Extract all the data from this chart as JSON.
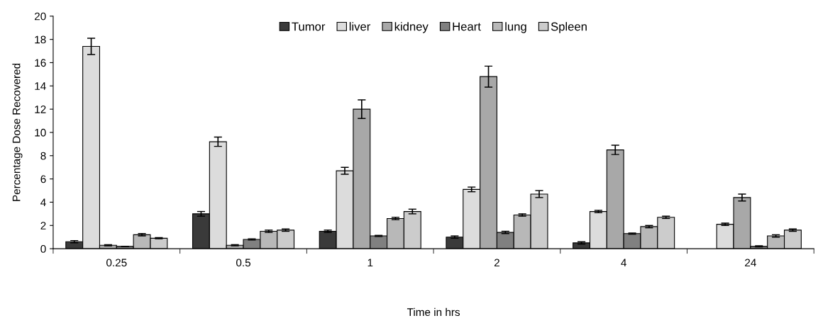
{
  "chart_data": {
    "type": "bar",
    "xlabel": "Time in hrs",
    "ylabel": "Percentage Dose Recovered",
    "categories": [
      "0.25",
      "0.5",
      "1",
      "2",
      "4",
      "24"
    ],
    "series": [
      {
        "name": "Tumor",
        "color": "#3a3a3a",
        "values": [
          0.6,
          3.0,
          1.5,
          1.0,
          0.5,
          null
        ],
        "errors": [
          0.1,
          0.2,
          0.1,
          0.1,
          0.1,
          null
        ]
      },
      {
        "name": "liver",
        "color": "#dcdcdc",
        "values": [
          17.4,
          9.2,
          6.7,
          5.1,
          3.2,
          2.1
        ],
        "errors": [
          0.7,
          0.4,
          0.3,
          0.2,
          0.1,
          0.1
        ]
      },
      {
        "name": "kidney",
        "color": "#a8a8a8",
        "values": [
          0.3,
          0.3,
          12.0,
          14.8,
          8.5,
          4.4
        ],
        "errors": [
          0.05,
          0.05,
          0.8,
          0.9,
          0.4,
          0.3
        ]
      },
      {
        "name": "Heart",
        "color": "#808080",
        "values": [
          0.2,
          0.8,
          1.1,
          1.4,
          1.3,
          0.2
        ],
        "errors": [
          null,
          0.05,
          0.05,
          0.1,
          0.05,
          0.05
        ]
      },
      {
        "name": "lung",
        "color": "#b8b8b8",
        "values": [
          1.2,
          1.5,
          2.6,
          2.9,
          1.9,
          1.1
        ],
        "errors": [
          0.1,
          0.1,
          0.1,
          0.1,
          0.1,
          0.1
        ]
      },
      {
        "name": "Spleen",
        "color": "#cccccc",
        "values": [
          0.9,
          1.6,
          3.2,
          4.7,
          2.7,
          1.6
        ],
        "errors": [
          0.05,
          0.1,
          0.2,
          0.3,
          0.1,
          0.1
        ]
      }
    ],
    "ylim": [
      0,
      20
    ],
    "yticks": [
      0,
      2,
      4,
      6,
      8,
      10,
      12,
      14,
      16,
      18,
      20
    ],
    "grid": false,
    "legend": "top"
  }
}
